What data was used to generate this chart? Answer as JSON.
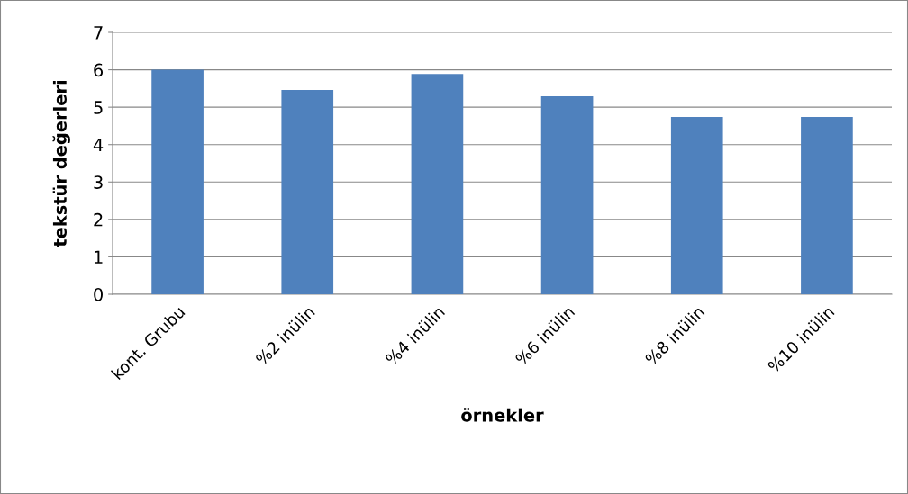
{
  "chart_data": {
    "type": "bar",
    "xlabel": "örnekler",
    "ylabel": "tekstür değerleri",
    "categories": [
      "kont. Grubu",
      "%2 inülin",
      "%4 inülin",
      "%6 inülin",
      "%8 inülin",
      "%10 inülin"
    ],
    "values": [
      6.0,
      5.46,
      5.89,
      5.29,
      4.74,
      4.74
    ],
    "color": "#4f81bd",
    "ylim": [
      0,
      7
    ],
    "yticks": [
      0,
      1,
      2,
      3,
      4,
      5,
      6,
      7
    ],
    "grid": "y",
    "legend": false
  }
}
